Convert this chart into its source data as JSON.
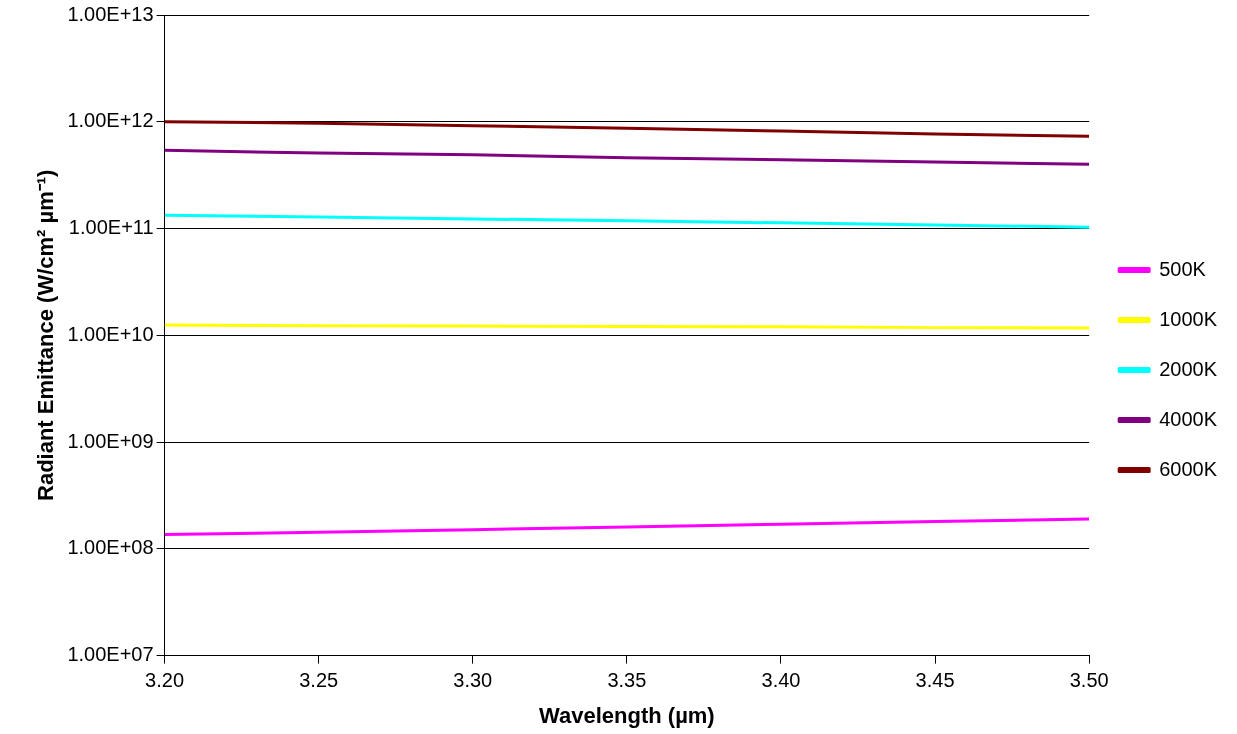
{
  "chart_data": {
    "type": "line",
    "xlabel": "Wavelength (µm)",
    "ylabel": "Radiant Emittance (W/cm² µm⁻¹)",
    "x": [
      3.2,
      3.25,
      3.3,
      3.35,
      3.4,
      3.45,
      3.5
    ],
    "series": [
      {
        "name": "500K",
        "color": "#ff00ff",
        "values": [
          136000000.0,
          143000000.0,
          151000000.0,
          160000000.0,
          170000000.0,
          180000000.0,
          190000000.0
        ]
      },
      {
        "name": "1000K",
        "color": "#ffff00",
        "values": [
          12500000000.0,
          12300000000.0,
          12200000000.0,
          12100000000.0,
          12000000000.0,
          11800000000.0,
          11700000000.0
        ]
      },
      {
        "name": "2000K",
        "color": "#00ffff",
        "values": [
          133000000000.0,
          128000000000.0,
          123000000000.0,
          118000000000.0,
          113000000000.0,
          108000000000.0,
          103000000000.0
        ]
      },
      {
        "name": "4000K",
        "color": "#800080",
        "values": [
          540000000000.0,
          510000000000.0,
          490000000000.0,
          460000000000.0,
          440000000000.0,
          420000000000.0,
          400000000000.0
        ]
      },
      {
        "name": "6000K",
        "color": "#800000",
        "values": [
          1000000000000.0,
          970000000000.0,
          920000000000.0,
          870000000000.0,
          820000000000.0,
          770000000000.0,
          730000000000.0
        ]
      }
    ],
    "xlim": [
      3.2,
      3.5
    ],
    "xticks": [
      {
        "value": 3.2,
        "label": "3.20"
      },
      {
        "value": 3.25,
        "label": "3.25"
      },
      {
        "value": 3.3,
        "label": "3.30"
      },
      {
        "value": 3.35,
        "label": "3.35"
      },
      {
        "value": 3.4,
        "label": "3.40"
      },
      {
        "value": 3.45,
        "label": "3.45"
      },
      {
        "value": 3.5,
        "label": "3.50"
      }
    ],
    "ylim": [
      10000000.0,
      10000000000000.0
    ],
    "yticks": [
      {
        "value": 10000000.0,
        "label": "1.00E+07"
      },
      {
        "value": 100000000.0,
        "label": "1.00E+08"
      },
      {
        "value": 1000000000.0,
        "label": "1.00E+09"
      },
      {
        "value": 10000000000.0,
        "label": "1.00E+10"
      },
      {
        "value": 100000000000.0,
        "label": "1.00E+11"
      },
      {
        "value": 1000000000000.0,
        "label": "1.00E+12"
      },
      {
        "value": 10000000000000.0,
        "label": "1.00E+13"
      }
    ],
    "log": "y",
    "grid": "y",
    "legend": "right",
    "marker": "none",
    "line_style": "solid"
  }
}
